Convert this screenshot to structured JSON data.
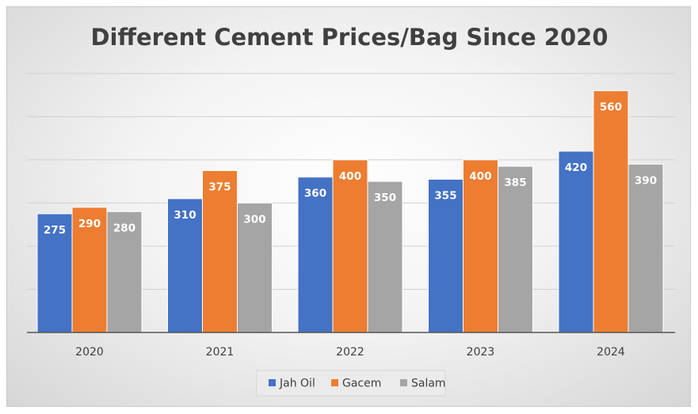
{
  "chart_data": {
    "type": "bar",
    "title": "Different Cement Prices/Bag Since 2020",
    "xlabel": "",
    "ylabel": "",
    "categories": [
      "2020",
      "2021",
      "2022",
      "2023",
      "2024"
    ],
    "series": [
      {
        "name": "Jah Oil",
        "color": "#4472c4",
        "values": [
          275,
          310,
          360,
          355,
          420
        ]
      },
      {
        "name": "Gacem",
        "color": "#ed7d31",
        "values": [
          290,
          375,
          400,
          400,
          560
        ]
      },
      {
        "name": "Salam",
        "color": "#a5a5a5",
        "values": [
          280,
          300,
          350,
          385,
          390
        ]
      }
    ],
    "ylim": [
      0,
      600
    ],
    "grid": true,
    "y_tick_labels_visible": false,
    "data_labels": true,
    "legend_position": "bottom"
  }
}
